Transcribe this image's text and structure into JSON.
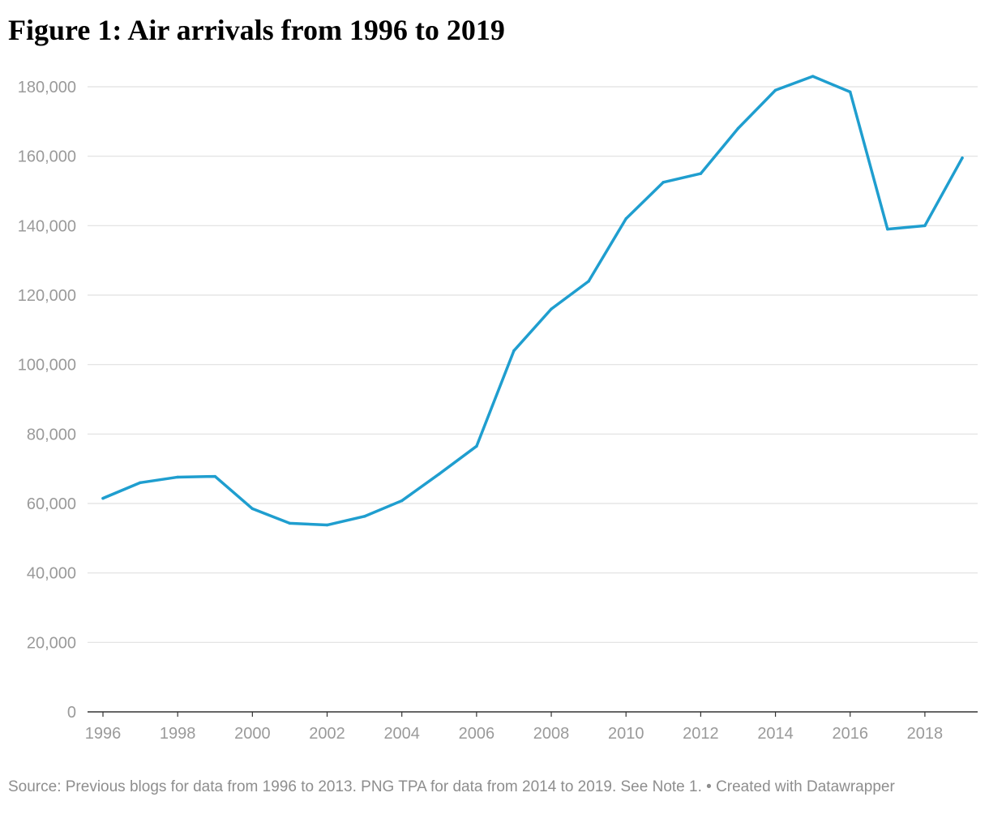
{
  "title": "Figure 1: Air arrivals from 1996 to 2019",
  "source": "Source: Previous blogs for data from 1996 to 2013. PNG TPA for data from 2014 to 2019. See Note 1. • Created with Datawrapper",
  "chart_data": {
    "type": "line",
    "title": "Figure 1: Air arrivals from 1996 to 2019",
    "xlabel": "",
    "ylabel": "",
    "x": [
      1996,
      1997,
      1998,
      1999,
      2000,
      2001,
      2002,
      2003,
      2004,
      2005,
      2006,
      2007,
      2008,
      2009,
      2010,
      2011,
      2012,
      2013,
      2014,
      2015,
      2016,
      2017,
      2018,
      2019
    ],
    "series": [
      {
        "color": "#1f9ecf",
        "values": [
          61500,
          66000,
          67600,
          67800,
          58500,
          54300,
          53800,
          56300,
          60800,
          68500,
          76500,
          104000,
          116000,
          124000,
          142000,
          152500,
          155000,
          168000,
          179000,
          183000,
          178500,
          139000,
          140000,
          159500
        ]
      }
    ],
    "xlim": [
      1996,
      2019
    ],
    "ylim": [
      0,
      180000
    ],
    "x_ticks": [
      "1996",
      "1998",
      "2000",
      "2002",
      "2004",
      "2006",
      "2008",
      "2010",
      "2012",
      "2014",
      "2016",
      "2018"
    ],
    "y_ticks": [
      "0",
      "20,000",
      "40,000",
      "60,000",
      "80,000",
      "100,000",
      "120,000",
      "140,000",
      "160,000",
      "180,000"
    ],
    "grid": true,
    "legend": "none",
    "colors": {
      "line": "#1f9ecf",
      "grid": "#e0e0e0",
      "axis": "#333333",
      "tick_text": "#9a9a9a"
    }
  }
}
